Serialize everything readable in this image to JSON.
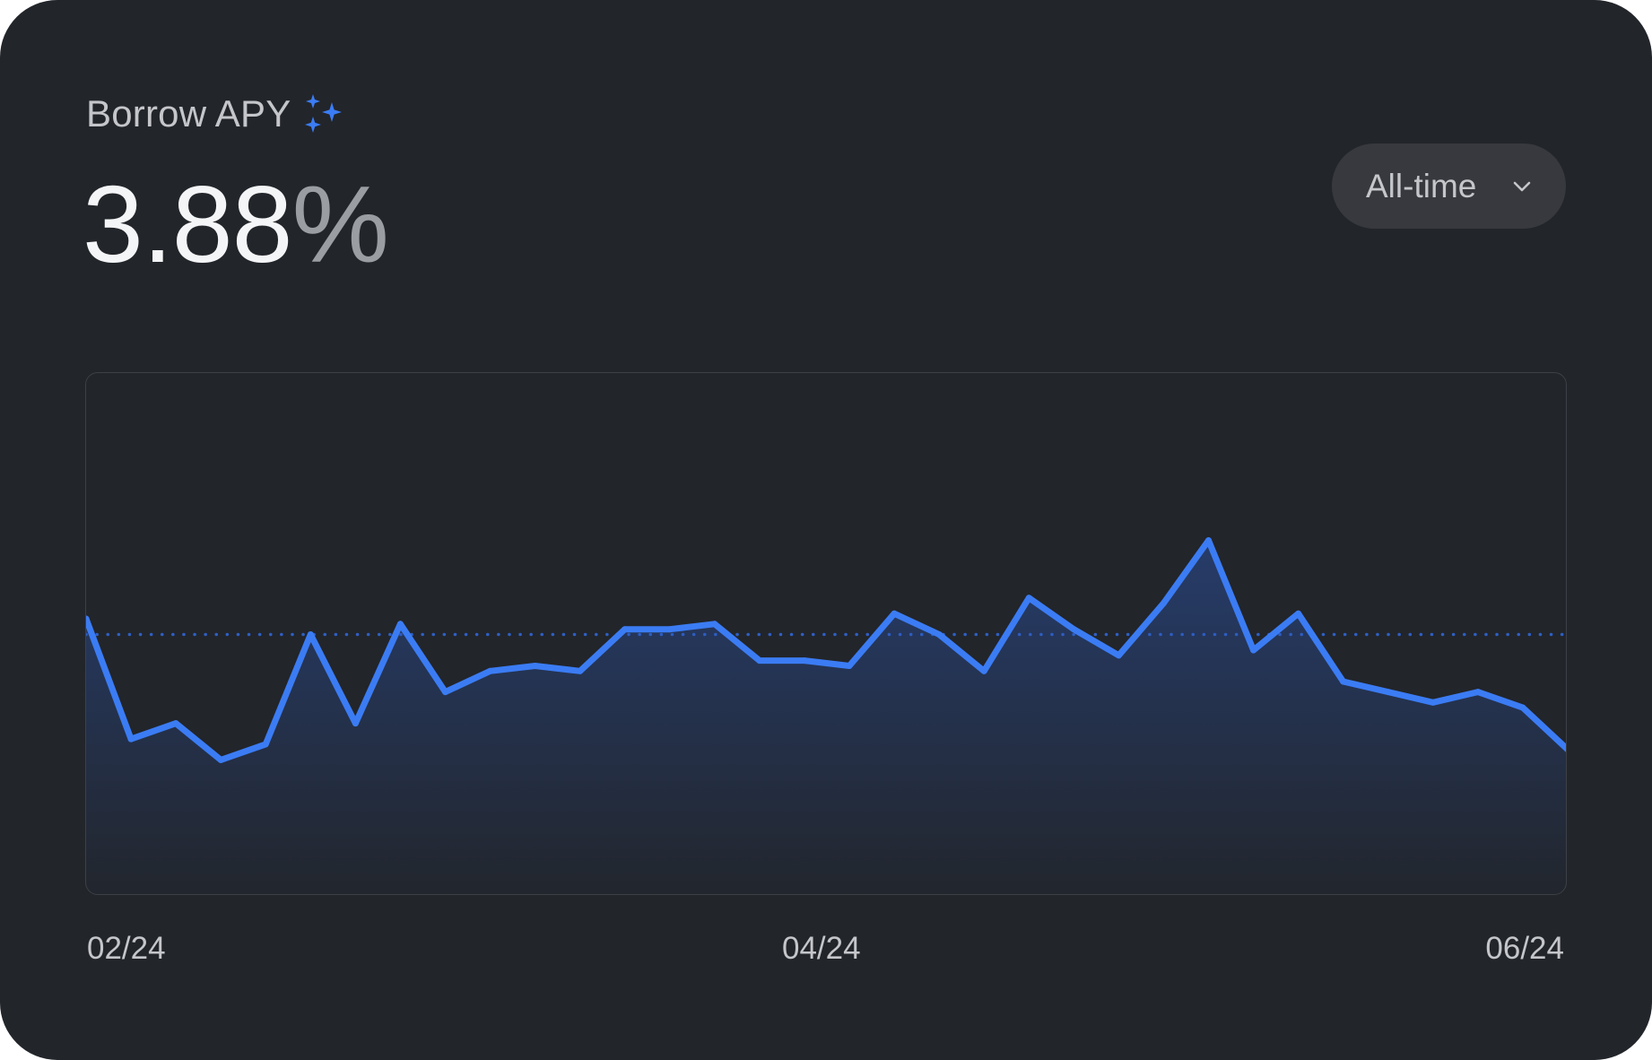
{
  "card": {
    "title": "Borrow APY",
    "value": "3.88",
    "unit": "%"
  },
  "range_selector": {
    "selected": "All-time"
  },
  "icons": {
    "title_icon": "sparkle-icon",
    "dropdown_icon": "chevron-down-icon"
  },
  "colors": {
    "background": "#22252a",
    "accent": "#3b7cf4",
    "button_bg": "#37393e"
  },
  "chart_data": {
    "type": "area",
    "x_ticks": [
      "02/24",
      "04/24",
      "06/24"
    ],
    "reference_line": 0.5,
    "ylim": [
      0,
      1
    ],
    "series": [
      {
        "values": [
          0.53,
          0.3,
          0.33,
          0.26,
          0.29,
          0.5,
          0.33,
          0.52,
          0.39,
          0.43,
          0.44,
          0.43,
          0.51,
          0.51,
          0.52,
          0.45,
          0.45,
          0.44,
          0.54,
          0.5,
          0.43,
          0.57,
          0.51,
          0.46,
          0.56,
          0.68,
          0.47,
          0.54,
          0.41,
          0.39,
          0.37,
          0.39,
          0.36,
          0.28
        ]
      }
    ]
  }
}
